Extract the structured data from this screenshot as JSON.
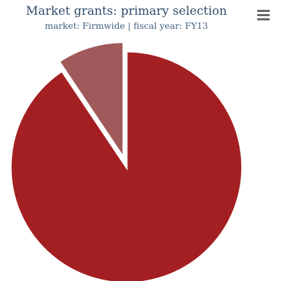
{
  "chart_data": {
    "type": "pie",
    "title": "Market grants: primary selection",
    "subtitle": "market: Firmwide | fiscal year: FY13",
    "slices": [
      {
        "value": 90.6,
        "color": "#a31f22"
      },
      {
        "value": 9.4,
        "color": "#a05a5b",
        "sliced": true
      }
    ]
  },
  "icons": {
    "menu": "hamburger-menu-icon"
  }
}
